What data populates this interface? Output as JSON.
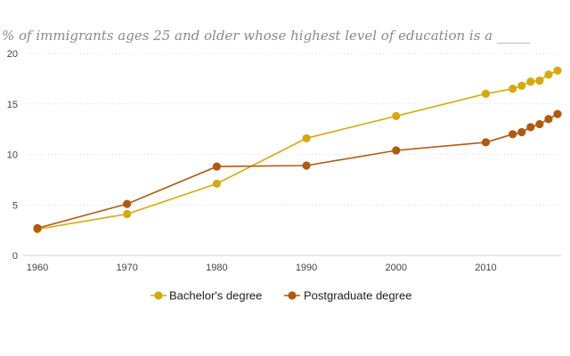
{
  "chart_data": {
    "type": "line",
    "subtitle": "% of immigrants ages 25 and older whose highest level of education is a _____",
    "xlabel": "",
    "ylabel": "",
    "x_ticks": [
      "1960",
      "1970",
      "1980",
      "1990",
      "2000",
      "2010"
    ],
    "y_ticks": [
      "0",
      "5",
      "10",
      "15",
      "20"
    ],
    "xlim": [
      1960,
      2018
    ],
    "ylim": [
      0,
      20
    ],
    "grid": "horizontal dotted",
    "legend_position": "bottom-center",
    "series": [
      {
        "name": "Bachelor's degree",
        "color": "#d4a90c",
        "points": [
          {
            "x": 1960,
            "y": 2.6
          },
          {
            "x": 1970,
            "y": 4.1
          },
          {
            "x": 1980,
            "y": 7.1
          },
          {
            "x": 1990,
            "y": 11.6
          },
          {
            "x": 2000,
            "y": 13.8
          },
          {
            "x": 2010,
            "y": 16.0
          },
          {
            "x": 2013,
            "y": 16.5
          },
          {
            "x": 2014,
            "y": 16.8
          },
          {
            "x": 2015,
            "y": 17.2
          },
          {
            "x": 2016,
            "y": 17.3
          },
          {
            "x": 2017,
            "y": 17.9
          },
          {
            "x": 2018,
            "y": 18.3
          }
        ]
      },
      {
        "name": "Postgraduate degree",
        "color": "#b05a10",
        "points": [
          {
            "x": 1960,
            "y": 2.7
          },
          {
            "x": 1970,
            "y": 5.1
          },
          {
            "x": 1980,
            "y": 8.8
          },
          {
            "x": 1990,
            "y": 8.9
          },
          {
            "x": 2000,
            "y": 10.4
          },
          {
            "x": 2010,
            "y": 11.2
          },
          {
            "x": 2013,
            "y": 12.0
          },
          {
            "x": 2014,
            "y": 12.2
          },
          {
            "x": 2015,
            "y": 12.7
          },
          {
            "x": 2016,
            "y": 13.0
          },
          {
            "x": 2017,
            "y": 13.5
          },
          {
            "x": 2018,
            "y": 14.0
          }
        ]
      }
    ]
  }
}
